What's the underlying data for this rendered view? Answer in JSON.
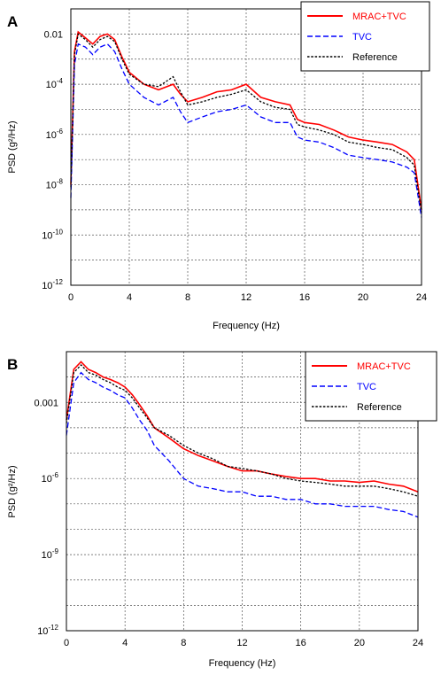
{
  "chart_data": [
    {
      "panel": "A",
      "type": "line",
      "title": "",
      "xlabel": "Frequency (Hz)",
      "ylabel": "PSD (g²/Hz)",
      "xlim": [
        0,
        24
      ],
      "ylim": [
        1e-12,
        0.1
      ],
      "yscale": "log",
      "grid": true,
      "legend_position": "top-right",
      "x_ticks": [
        0,
        4,
        8,
        12,
        16,
        20,
        24
      ],
      "y_ticks": [
        0.01,
        0.0001,
        1e-06,
        1e-08,
        1e-10,
        1e-12
      ],
      "y_tick_labels": [
        {
          "base": "0.01",
          "exp": ""
        },
        {
          "base": "10",
          "exp": "-4"
        },
        {
          "base": "10",
          "exp": "-6"
        },
        {
          "base": "10",
          "exp": "-8"
        },
        {
          "base": "10",
          "exp": "-10"
        },
        {
          "base": "10",
          "exp": "-12"
        }
      ],
      "x": [
        0,
        0.25,
        0.5,
        1,
        1.5,
        2,
        2.5,
        3,
        3.5,
        4,
        5,
        6,
        7,
        7.5,
        8,
        9,
        10,
        11,
        12,
        13,
        14,
        15,
        15.5,
        16,
        17,
        18,
        19,
        20,
        21,
        22,
        23,
        23.5,
        24
      ],
      "series": [
        {
          "name": "MRAC+TVC",
          "color": "#ff0000",
          "dash": "solid",
          "values": [
            1e-08,
            0.002,
            0.012,
            0.007,
            0.004,
            0.008,
            0.01,
            0.006,
            0.0012,
            0.0003,
            0.0001,
            6e-05,
            0.0001,
            4e-05,
            2e-05,
            3e-05,
            5e-05,
            6e-05,
            0.0001,
            3e-05,
            2e-05,
            1.5e-05,
            4e-06,
            3e-06,
            2.5e-06,
            1.5e-06,
            8e-07,
            6e-07,
            5e-07,
            4e-07,
            2e-07,
            1e-07,
            1e-09
          ]
        },
        {
          "name": "TVC",
          "color": "#0000ff",
          "dash": "dashed",
          "values": [
            3e-09,
            0.0006,
            0.004,
            0.003,
            0.0015,
            0.003,
            0.004,
            0.002,
            0.0004,
            0.0001,
            3e-05,
            1.5e-05,
            3e-05,
            8e-06,
            3e-06,
            5e-06,
            8e-06,
            1e-05,
            1.5e-05,
            5e-06,
            3e-06,
            3e-06,
            8e-07,
            6e-07,
            5e-07,
            3e-07,
            1.5e-07,
            1.2e-07,
            1e-07,
            8e-08,
            5e-08,
            3e-08,
            5e-10
          ]
        },
        {
          "name": "Reference",
          "color": "#000000",
          "dash": "dotted",
          "values": [
            8e-09,
            0.0015,
            0.01,
            0.006,
            0.003,
            0.006,
            0.008,
            0.005,
            0.001,
            0.00025,
            0.0001,
            8e-05,
            0.0002,
            5e-05,
            1.5e-05,
            2e-05,
            3e-05,
            4e-05,
            6e-05,
            2e-05,
            1.2e-05,
            1e-05,
            2.5e-06,
            2e-06,
            1.5e-06,
            1e-06,
            5e-07,
            4e-07,
            3e-07,
            2.5e-07,
            1.2e-07,
            6e-08,
            8e-10
          ]
        }
      ]
    },
    {
      "panel": "B",
      "type": "line",
      "title": "",
      "xlabel": "Frequency (Hz)",
      "ylabel": "PSD (g²/Hz)",
      "xlim": [
        0,
        24
      ],
      "ylim": [
        1e-12,
        0.1
      ],
      "yscale": "log",
      "grid": true,
      "legend_position": "top-right",
      "x_ticks": [
        0,
        4,
        8,
        12,
        16,
        20,
        24
      ],
      "y_ticks": [
        0.001,
        1e-06,
        1e-09,
        1e-12
      ],
      "y_tick_labels": [
        {
          "base": "0.001",
          "exp": ""
        },
        {
          "base": "10",
          "exp": "-6"
        },
        {
          "base": "10",
          "exp": "-9"
        },
        {
          "base": "10",
          "exp": "-12"
        }
      ],
      "x": [
        0,
        0.5,
        1,
        1.5,
        2,
        2.5,
        3,
        3.5,
        4,
        4.5,
        5,
        5.5,
        6,
        7,
        8,
        9,
        10,
        11,
        12,
        13,
        14,
        15,
        16,
        17,
        18,
        19,
        20,
        21,
        22,
        23,
        24
      ],
      "series": [
        {
          "name": "MRAC+TVC",
          "color": "#ff0000",
          "dash": "solid",
          "values": [
            0.0002,
            0.02,
            0.04,
            0.02,
            0.015,
            0.01,
            0.008,
            0.006,
            0.004,
            0.002,
            0.0008,
            0.0003,
            0.0001,
            4e-05,
            1.5e-05,
            8e-06,
            5e-06,
            3e-06,
            2e-06,
            2e-06,
            1.5e-06,
            1.2e-06,
            1e-06,
            1e-06,
            8e-07,
            8e-07,
            7e-07,
            8e-07,
            6e-07,
            5e-07,
            3e-07
          ]
        },
        {
          "name": "TVC",
          "color": "#0000ff",
          "dash": "dashed",
          "values": [
            5e-05,
            0.006,
            0.015,
            0.008,
            0.006,
            0.004,
            0.003,
            0.002,
            0.0015,
            0.0006,
            0.0002,
            8e-05,
            2e-05,
            5e-06,
            1e-06,
            5e-07,
            4e-07,
            3e-07,
            3e-07,
            2e-07,
            2e-07,
            1.5e-07,
            1.5e-07,
            1e-07,
            1e-07,
            8e-08,
            8e-08,
            8e-08,
            6e-08,
            5e-08,
            3e-08
          ]
        },
        {
          "name": "Reference",
          "color": "#000000",
          "dash": "dotted",
          "values": [
            0.00015,
            0.015,
            0.03,
            0.015,
            0.012,
            0.008,
            0.006,
            0.004,
            0.003,
            0.0015,
            0.0006,
            0.00025,
            0.0001,
            5e-05,
            2e-05,
            1e-05,
            6e-06,
            3e-06,
            2.5e-06,
            2e-06,
            1.5e-06,
            1e-06,
            8e-07,
            7e-07,
            6e-07,
            5e-07,
            5e-07,
            5e-07,
            4e-07,
            3e-07,
            2e-07
          ]
        }
      ]
    }
  ]
}
